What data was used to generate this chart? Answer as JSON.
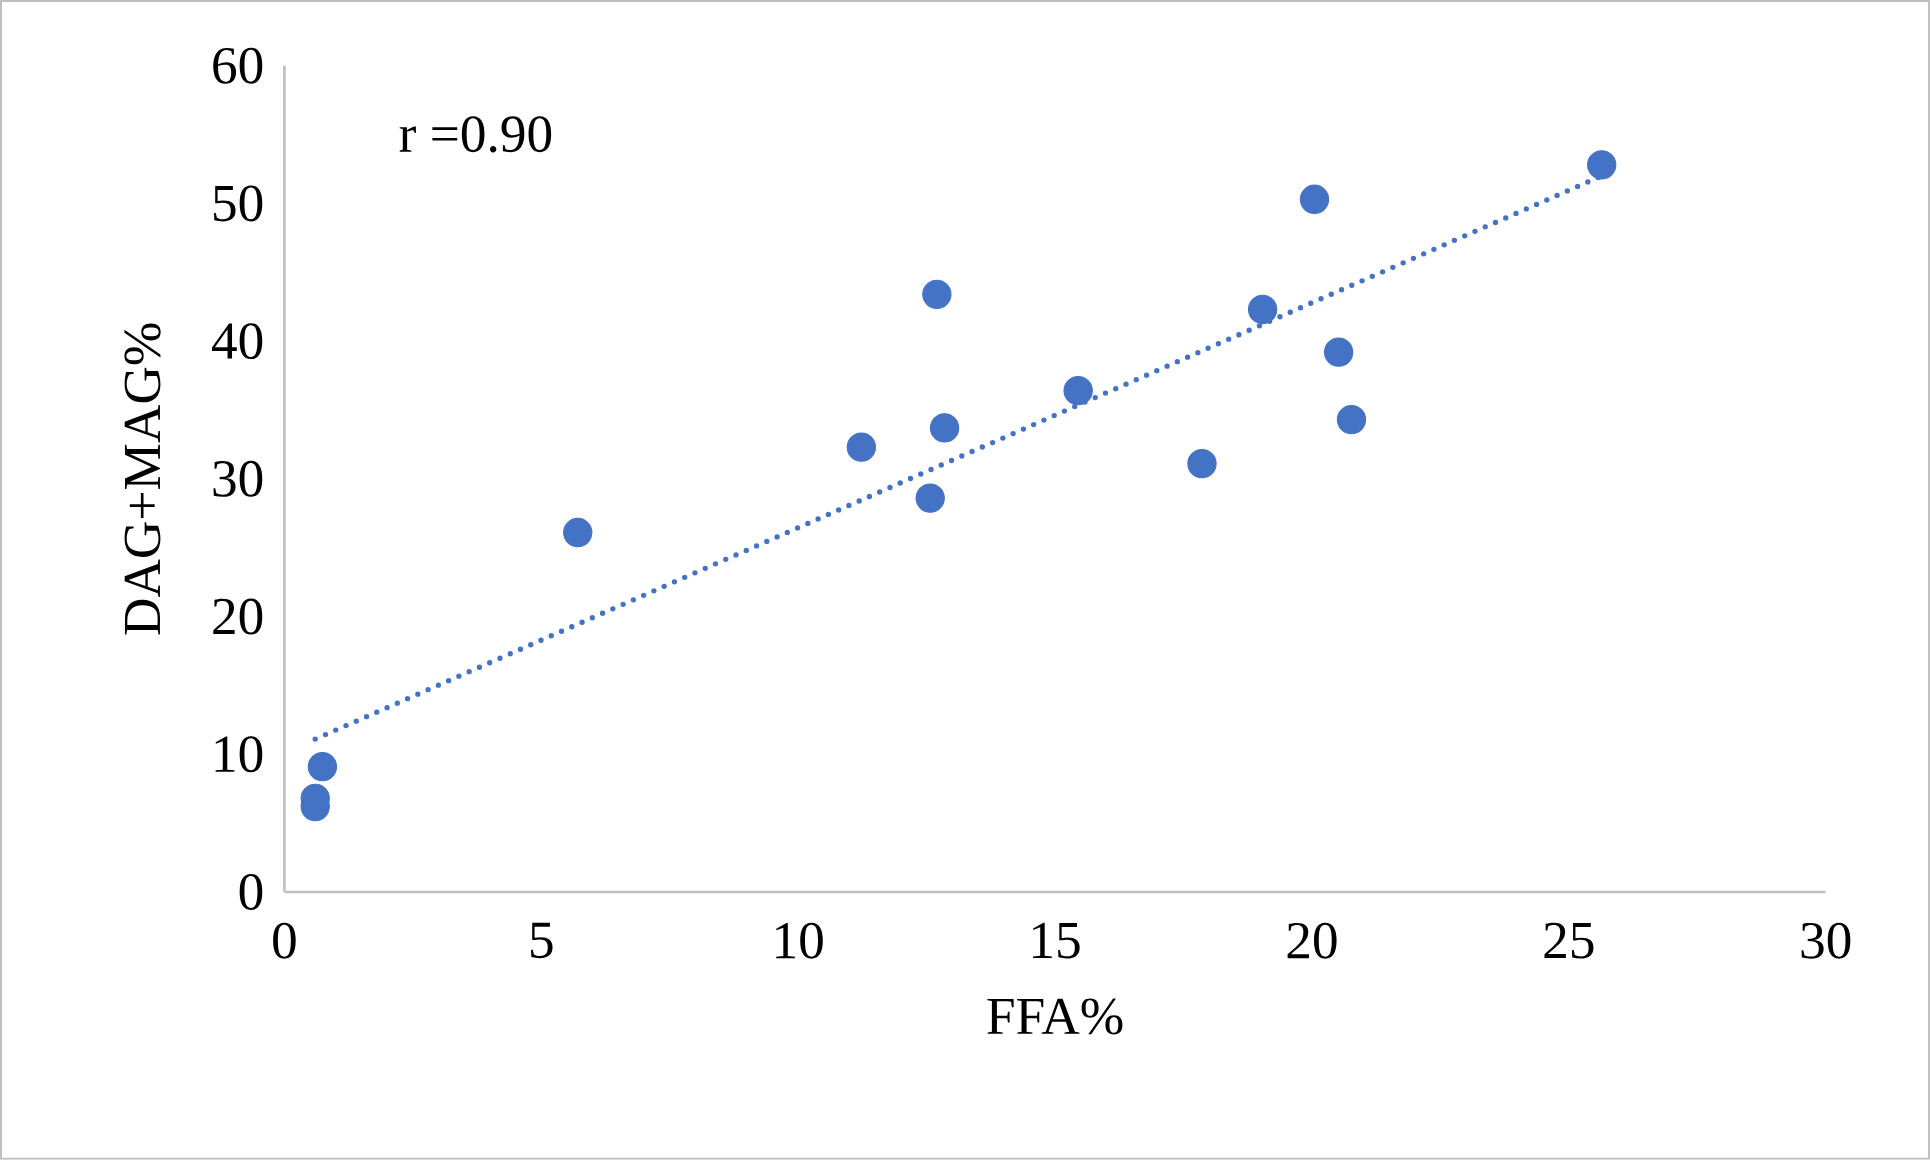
{
  "chart_data": {
    "type": "scatter",
    "xlabel": "FFA%",
    "ylabel": "DAG+MAG%",
    "annotations": [
      "r =0.90"
    ],
    "xlim": [
      0,
      30
    ],
    "ylim": [
      0,
      60
    ],
    "xticks": [
      0,
      5,
      10,
      15,
      20,
      25,
      30
    ],
    "yticks": [
      0,
      10,
      20,
      30,
      40,
      50,
      60
    ],
    "grid": false,
    "series": [
      {
        "color": "#4472c4",
        "marker": "circle",
        "x": [
          0.6,
          0.6,
          0.74,
          5.71,
          11.23,
          12.57,
          12.7,
          12.85,
          15.45,
          17.86,
          19.04,
          20.05,
          20.52,
          20.77,
          25.64
        ],
        "values": [
          6.2,
          6.8,
          9.1,
          26.1,
          32.3,
          28.6,
          43.4,
          33.7,
          36.4,
          31.1,
          42.3,
          50.3,
          39.2,
          34.3,
          52.8
        ]
      },
      {
        "type": "line",
        "color": "#4472c4",
        "marker": "none",
        "line_style": "dotted",
        "x": [
          0.6,
          25.64
        ],
        "values": [
          11.1,
          52.0
        ]
      }
    ]
  }
}
